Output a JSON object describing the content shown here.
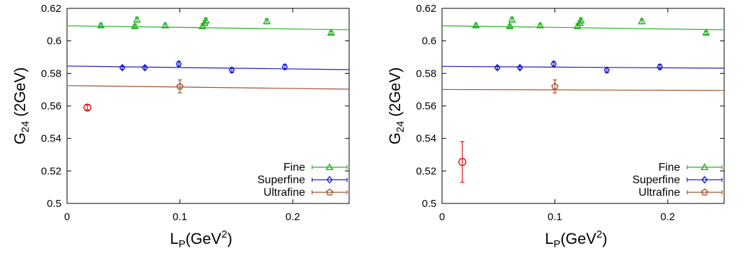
{
  "chart_data": [
    {
      "type": "scatter",
      "xlabel": {
        "main": "L",
        "sub": "P",
        "post": "(GeV",
        "sup": "2",
        "end": ")"
      },
      "ylabel": {
        "main": "G",
        "sub": "24",
        "post": " (2GeV)"
      },
      "xlim": [
        0,
        0.25
      ],
      "ylim": [
        0.5,
        0.62
      ],
      "xticks": [
        0,
        0.1,
        0.2
      ],
      "xtick_labels": [
        "0",
        "0.1",
        "0.2"
      ],
      "yticks": [
        0.5,
        0.52,
        0.54,
        0.56,
        0.58,
        0.6,
        0.62
      ],
      "ytick_labels": [
        "0.5",
        "0.52",
        "0.54",
        "0.56",
        "0.58",
        "0.6",
        "0.62"
      ],
      "legend_position": "bottom-right",
      "series": [
        {
          "name": "Fine",
          "color": "#22b022",
          "marker": "triangle",
          "x": [
            0.03,
            0.06,
            0.062,
            0.087,
            0.12,
            0.122,
            0.123,
            0.177,
            0.234
          ],
          "y": [
            0.6095,
            0.609,
            0.613,
            0.6095,
            0.609,
            0.611,
            0.6125,
            0.612,
            0.605
          ],
          "err": [
            0.001,
            0.001,
            0.0015,
            0.001,
            0.0015,
            0.0015,
            0.0015,
            0.0015,
            0.001
          ],
          "fit": [
            [
              0,
              0.6093
            ],
            [
              0.25,
              0.6068
            ]
          ]
        },
        {
          "name": "Superfine",
          "color": "#1a1ad0",
          "marker": "diamond",
          "x": [
            0.049,
            0.069,
            0.099,
            0.146,
            0.193
          ],
          "y": [
            0.5835,
            0.5835,
            0.5858,
            0.582,
            0.584
          ],
          "err": [
            0.001,
            0.001,
            0.0015,
            0.0015,
            0.0015
          ],
          "fit": [
            [
              0,
              0.5845
            ],
            [
              0.25,
              0.5823
            ]
          ]
        },
        {
          "name": "Ultrafine",
          "color": "#a0522d",
          "marker": "pentagon",
          "x": [
            0.1
          ],
          "y": [
            0.572
          ],
          "err": [
            0.004
          ],
          "fit": [
            [
              0,
              0.5725
            ],
            [
              0.25,
              0.5703
            ]
          ]
        },
        {
          "name": "",
          "color": "#e01010",
          "marker": "circle",
          "x": [
            0.018
          ],
          "y": [
            0.559
          ],
          "err": [
            0.0015
          ]
        }
      ]
    },
    {
      "type": "scatter",
      "xlabel": {
        "main": "L",
        "sub": "P",
        "post": "(GeV",
        "sup": "2",
        "end": ")"
      },
      "ylabel": {
        "main": "G",
        "sub": "24",
        "post": " (2GeV)"
      },
      "xlim": [
        0,
        0.25
      ],
      "ylim": [
        0.5,
        0.62
      ],
      "xticks": [
        0,
        0.1,
        0.2
      ],
      "xtick_labels": [
        "0",
        "0.1",
        "0.2"
      ],
      "yticks": [
        0.5,
        0.52,
        0.54,
        0.56,
        0.58,
        0.6,
        0.62
      ],
      "ytick_labels": [
        "0.5",
        "0.52",
        "0.54",
        "0.56",
        "0.58",
        "0.6",
        "0.62"
      ],
      "legend_position": "bottom-right",
      "series": [
        {
          "name": "Fine",
          "color": "#22b022",
          "marker": "triangle",
          "x": [
            0.03,
            0.06,
            0.062,
            0.087,
            0.12,
            0.122,
            0.123,
            0.177,
            0.234
          ],
          "y": [
            0.6095,
            0.609,
            0.613,
            0.6095,
            0.609,
            0.611,
            0.6125,
            0.612,
            0.605
          ],
          "err": [
            0.001,
            0.001,
            0.0015,
            0.001,
            0.0015,
            0.0015,
            0.0015,
            0.0015,
            0.001
          ],
          "fit": [
            [
              0,
              0.6093
            ],
            [
              0.25,
              0.6068
            ]
          ]
        },
        {
          "name": "Superfine",
          "color": "#1a1ad0",
          "marker": "diamond",
          "x": [
            0.049,
            0.069,
            0.099,
            0.146,
            0.193
          ],
          "y": [
            0.5835,
            0.5835,
            0.5858,
            0.582,
            0.584
          ],
          "err": [
            0.001,
            0.001,
            0.0015,
            0.0015,
            0.0015
          ],
          "fit": [
            [
              0,
              0.5843
            ],
            [
              0.25,
              0.5832
            ]
          ]
        },
        {
          "name": "Ultrafine",
          "color": "#a0522d",
          "marker": "pentagon",
          "x": [
            0.1
          ],
          "y": [
            0.572
          ],
          "err": [
            0.004
          ],
          "fit": [
            [
              0,
              0.5701
            ],
            [
              0.25,
              0.5695
            ]
          ]
        },
        {
          "name": "",
          "color": "#e01010",
          "marker": "circle",
          "x": [
            0.018
          ],
          "y": [
            0.5255
          ],
          "err": [
            0.0125
          ]
        }
      ]
    }
  ]
}
